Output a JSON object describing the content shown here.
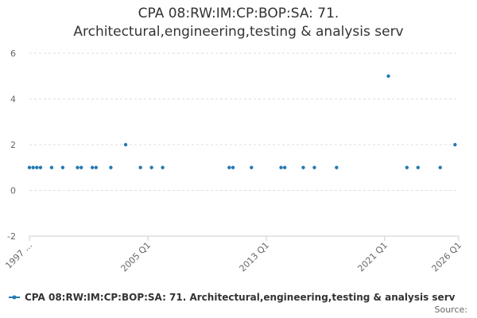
{
  "chart_data": {
    "type": "scatter",
    "title": "CPA 08:RW:IM:CP:BOP:SA: 71. Architectural,engineering,testing & analysis serv",
    "source": "Source:",
    "series": [
      {
        "name": "CPA 08:RW:IM:CP:BOP:SA: 71. Architectural,engineering,testing & analysis serv",
        "color": "#2479b0",
        "x": [
          "1997 Q1",
          "1997 Q2",
          "1997 Q3",
          "1997 Q4",
          "1998 Q3",
          "1999 Q2",
          "2000 Q2",
          "2000 Q3",
          "2001 Q2",
          "2001 Q3",
          "2002 Q3",
          "2003 Q3",
          "2004 Q3",
          "2005 Q2",
          "2006 Q1",
          "2010 Q3",
          "2010 Q4",
          "2012 Q1",
          "2014 Q1",
          "2014 Q2",
          "2015 Q3",
          "2016 Q2",
          "2017 Q4",
          "2021 Q2",
          "2022 Q3",
          "2023 Q2",
          "2024 Q4",
          "2025 Q4"
        ],
        "values": [
          1,
          1,
          1,
          1,
          1,
          1,
          1,
          1,
          1,
          1,
          1,
          2,
          1,
          1,
          1,
          1,
          1,
          1,
          1,
          1,
          1,
          1,
          1,
          5,
          1,
          1,
          1,
          2
        ]
      }
    ],
    "xlim": [
      "1997 Q1",
      "2026 Q1"
    ],
    "xticks": [
      {
        "value": "1997 Q1",
        "label": "1997 ..."
      },
      "2005 Q1",
      "2013 Q1",
      "2021 Q1",
      "2026 Q1"
    ],
    "ylim": [
      -2,
      6
    ],
    "yticks": [
      -2,
      0,
      2,
      4,
      6
    ],
    "grid": true
  }
}
